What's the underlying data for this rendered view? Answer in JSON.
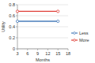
{
  "chart_data": {
    "type": "line",
    "x_label": "Months",
    "y_label": "Utility",
    "x": [
      3,
      15
    ],
    "series": [
      {
        "name": "Less",
        "color": "#4a7ebb",
        "values": [
          0.5,
          0.5
        ],
        "marker": "circle"
      },
      {
        "name": "More",
        "color": "#e0403a",
        "values": [
          0.68,
          0.68
        ],
        "marker": "circle"
      }
    ],
    "xlim": [
      3,
      18
    ],
    "xticks": [
      3,
      6,
      9,
      12,
      15,
      18
    ],
    "ylim": [
      0,
      0.8
    ],
    "yticks": [
      0,
      0.2,
      0.4,
      0.6,
      0.8
    ],
    "grid": true,
    "legend": "right"
  }
}
